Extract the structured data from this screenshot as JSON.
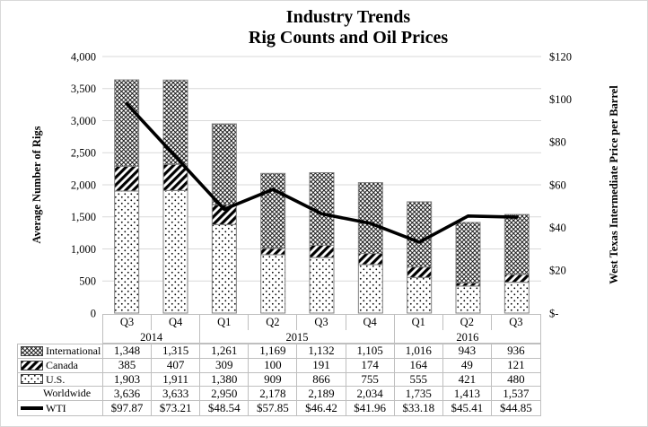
{
  "title": {
    "line1": "Industry Trends",
    "line2": "Rig Counts and Oil Prices"
  },
  "chart_data": {
    "type": "combo-stacked-bar-line",
    "categories": [
      "Q3",
      "Q4",
      "Q1",
      "Q2",
      "Q3",
      "Q4",
      "Q1",
      "Q2",
      "Q3"
    ],
    "year_groups": [
      {
        "label": "2014",
        "span": 2
      },
      {
        "label": "2015",
        "span": 4
      },
      {
        "label": "2016",
        "span": 3
      }
    ],
    "series": [
      {
        "name": "International",
        "type": "bar",
        "pattern": "crosshatch",
        "values": [
          1348,
          1315,
          1261,
          1169,
          1132,
          1105,
          1016,
          943,
          936
        ]
      },
      {
        "name": "Canada",
        "type": "bar",
        "pattern": "diagonal",
        "values": [
          385,
          407,
          309,
          100,
          191,
          174,
          164,
          49,
          121
        ]
      },
      {
        "name": "U.S.",
        "type": "bar",
        "pattern": "dots",
        "values": [
          1903,
          1911,
          1380,
          909,
          866,
          755,
          555,
          421,
          480
        ]
      },
      {
        "name": "Worldwide",
        "type": "total",
        "pattern": "none",
        "values": [
          3636,
          3633,
          2950,
          2178,
          2189,
          2034,
          1735,
          1413,
          1537
        ]
      },
      {
        "name": "WTI",
        "type": "line",
        "pattern": "line",
        "values": [
          97.87,
          73.21,
          48.54,
          57.85,
          46.42,
          41.96,
          33.18,
          45.41,
          44.85
        ]
      }
    ],
    "left_axis": {
      "label": "Average Number of Rigs",
      "min": 0,
      "max": 4000,
      "step": 500,
      "ticks": [
        "0",
        "500",
        "1,000",
        "1,500",
        "2,000",
        "2,500",
        "3,000",
        "3,500",
        "4,000"
      ]
    },
    "right_axis": {
      "label": "West Texas Intermediate Price per Barrel",
      "min": 0,
      "max": 120,
      "step": 20,
      "ticks": [
        "$-",
        "$20",
        "$40",
        "$60",
        "$80",
        "$100",
        "$120"
      ]
    },
    "table": {
      "rows": [
        {
          "label": "International",
          "swatch": "crosshatch",
          "cells": [
            "1,348",
            "1,315",
            "1,261",
            "1,169",
            "1,132",
            "1,105",
            "1,016",
            "943",
            "936"
          ]
        },
        {
          "label": "Canada",
          "swatch": "diagonal",
          "cells": [
            "385",
            "407",
            "309",
            "100",
            "191",
            "174",
            "164",
            "49",
            "121"
          ]
        },
        {
          "label": "U.S.",
          "swatch": "dots",
          "cells": [
            "1,903",
            "1,911",
            "1,380",
            "909",
            "866",
            "755",
            "555",
            "421",
            "480"
          ]
        },
        {
          "label": "Worldwide",
          "swatch": "none",
          "cells": [
            "3,636",
            "3,633",
            "2,950",
            "2,178",
            "2,189",
            "2,034",
            "1,735",
            "1,413",
            "1,537"
          ]
        },
        {
          "label": "WTI",
          "swatch": "line",
          "cells": [
            "$97.87",
            "$73.21",
            "$48.54",
            "$57.85",
            "$46.42",
            "$41.96",
            "$33.18",
            "$45.41",
            "$44.85"
          ]
        }
      ]
    },
    "colors": {
      "bar_fill": "#ffffff",
      "bar_outline": "#808080",
      "pattern_ink": "#000000",
      "line": "#000000",
      "grid": "#d9d9d9",
      "table_border": "#bfbfbf",
      "text": "#000000"
    },
    "legend_position": "table-left"
  }
}
